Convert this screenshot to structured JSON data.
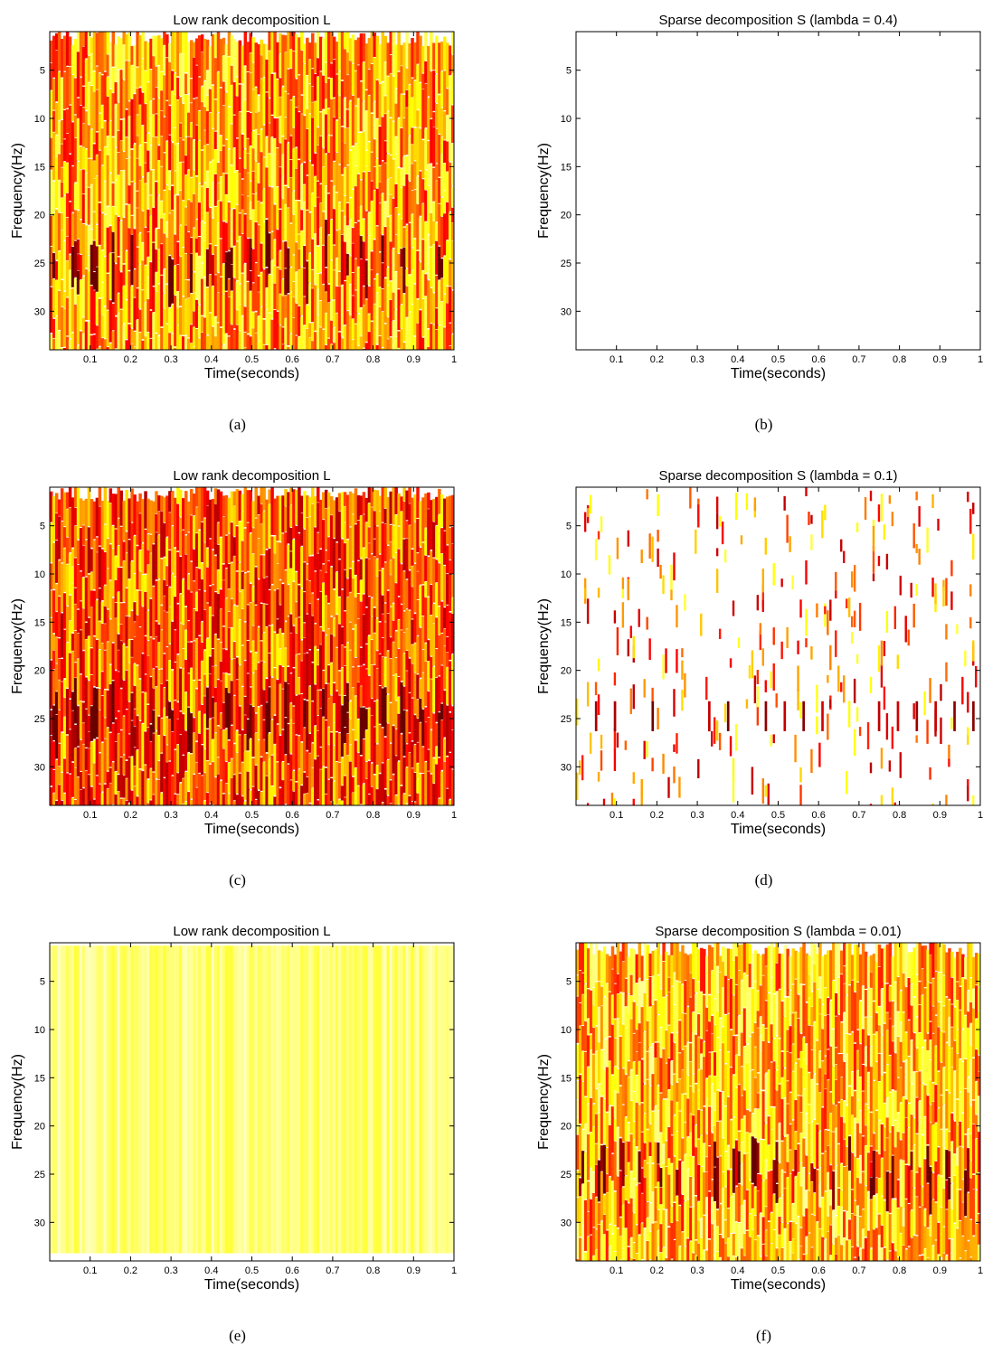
{
  "chart_data": [
    {
      "type": "heatmap",
      "title": "Low rank decomposition L",
      "xlabel": "Time(seconds)",
      "ylabel": "Frequency(Hz)",
      "xlim": [
        0,
        1
      ],
      "ylim": [
        34,
        1
      ],
      "xticks": [
        0.1,
        0.2,
        0.3,
        0.4,
        0.5,
        0.6,
        0.7,
        0.8,
        0.9,
        1
      ],
      "yticks": [
        5,
        10,
        15,
        20,
        25,
        30
      ],
      "colormap": "hot (reversed)",
      "pattern": "dense",
      "density": 1.0,
      "base_intensity": 0.35,
      "band_frequency": 25,
      "band_strength": 0.55,
      "caption": "(a)"
    },
    {
      "type": "heatmap",
      "title": "Sparse decomposition S (lambda = 0.4)",
      "xlabel": "Time(seconds)",
      "ylabel": "Frequency(Hz)",
      "xlim": [
        0,
        1
      ],
      "ylim": [
        34,
        1
      ],
      "xticks": [
        0.1,
        0.2,
        0.3,
        0.4,
        0.5,
        0.6,
        0.7,
        0.8,
        0.9,
        1
      ],
      "yticks": [
        5,
        10,
        15,
        20,
        25,
        30
      ],
      "colormap": "hot (reversed)",
      "pattern": "empty",
      "density": 0.0,
      "base_intensity": 0.0,
      "band_frequency": 25,
      "band_strength": 0.0,
      "caption": "(b)"
    },
    {
      "type": "heatmap",
      "title": "Low rank decomposition L",
      "xlabel": "Time(seconds)",
      "ylabel": "Frequency(Hz)",
      "xlim": [
        0,
        1
      ],
      "ylim": [
        34,
        1
      ],
      "xticks": [
        0.1,
        0.2,
        0.3,
        0.4,
        0.5,
        0.6,
        0.7,
        0.8,
        0.9,
        1
      ],
      "yticks": [
        5,
        10,
        15,
        20,
        25,
        30
      ],
      "colormap": "hot (reversed)",
      "pattern": "dense",
      "density": 1.0,
      "base_intensity": 0.48,
      "band_frequency": 25,
      "band_strength": 0.5,
      "caption": "(c)"
    },
    {
      "type": "heatmap",
      "title": "Sparse decomposition S (lambda = 0.1)",
      "xlabel": "Time(seconds)",
      "ylabel": "Frequency(Hz)",
      "xlim": [
        0,
        1
      ],
      "ylim": [
        34,
        1
      ],
      "xticks": [
        0.1,
        0.2,
        0.3,
        0.4,
        0.5,
        0.6,
        0.7,
        0.8,
        0.9,
        1
      ],
      "yticks": [
        5,
        10,
        15,
        20,
        25,
        30
      ],
      "colormap": "hot (reversed)",
      "pattern": "sparse",
      "density": 0.12,
      "base_intensity": 0.55,
      "band_frequency": 25,
      "band_strength": 0.45,
      "caption": "(d)"
    },
    {
      "type": "heatmap",
      "title": "Low rank decomposition L",
      "xlabel": "Time(seconds)",
      "ylabel": "Frequency(Hz)",
      "xlim": [
        0,
        1
      ],
      "ylim": [
        34,
        1
      ],
      "xticks": [
        0.1,
        0.2,
        0.3,
        0.4,
        0.5,
        0.6,
        0.7,
        0.8,
        0.9,
        1
      ],
      "yticks": [
        5,
        10,
        15,
        20,
        25,
        30
      ],
      "colormap": "hot (reversed)",
      "pattern": "uniform",
      "density": 1.0,
      "base_intensity": 0.08,
      "band_frequency": 25,
      "band_strength": 0.0,
      "caption": "(e)"
    },
    {
      "type": "heatmap",
      "title": "Sparse decomposition S (lambda = 0.01)",
      "xlabel": "Time(seconds)",
      "ylabel": "Frequency(Hz)",
      "xlim": [
        0,
        1
      ],
      "ylim": [
        34,
        1
      ],
      "xticks": [
        0.1,
        0.2,
        0.3,
        0.4,
        0.5,
        0.6,
        0.7,
        0.8,
        0.9,
        1
      ],
      "yticks": [
        5,
        10,
        15,
        20,
        25,
        30
      ],
      "colormap": "hot (reversed)",
      "pattern": "dense",
      "density": 1.0,
      "base_intensity": 0.3,
      "band_frequency": 25,
      "band_strength": 0.55,
      "caption": "(f)"
    }
  ]
}
